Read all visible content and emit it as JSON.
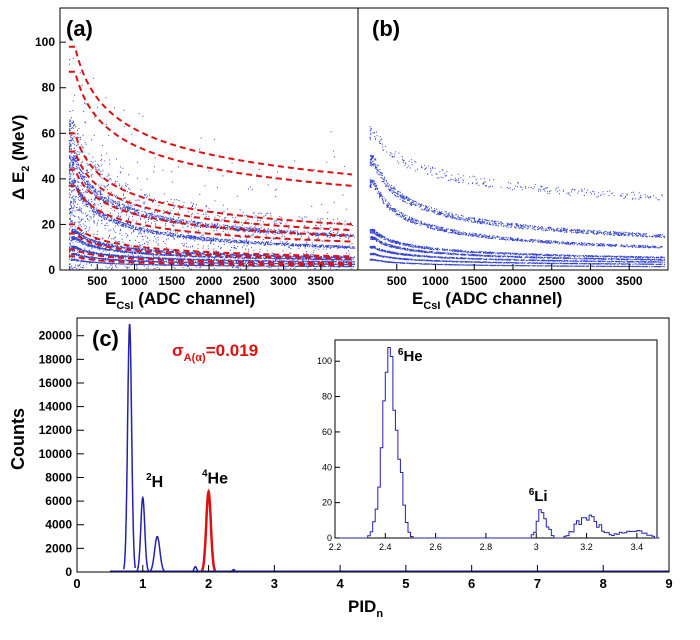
{
  "colors": {
    "blue": "#2222aa",
    "red": "#dd1111",
    "axis": "#000000",
    "scatter": "#3344cc"
  },
  "chart_data": [
    {
      "panel": "(a)",
      "type": "scatter",
      "title": "",
      "xlabel_main": "E",
      "xlabel_sub": "CsI",
      "xlabel_rest": " (ADC channel)",
      "ylabel_main": "Δ E",
      "ylabel_sub": "2",
      "ylabel_rest": " (MeV)",
      "xlim": [
        0,
        4000
      ],
      "ylim": [
        0,
        115
      ],
      "x_ticks": [
        500,
        1000,
        1500,
        2000,
        2500,
        3000,
        3500
      ],
      "y_ticks": [
        0,
        20,
        40,
        60,
        80,
        100
      ],
      "bands_y_at_200_and_3900": [
        [
          48,
          15
        ],
        [
          38,
          10
        ],
        [
          17,
          5.5
        ],
        [
          14,
          4.5
        ],
        [
          10,
          3.5
        ],
        [
          7,
          2.5
        ],
        [
          4.5,
          1.5
        ]
      ],
      "cut_lines_y_at_200_and_3900": [
        [
          98,
          42
        ],
        [
          87,
          37
        ],
        [
          60,
          20
        ],
        [
          52,
          17.5
        ],
        [
          44,
          15
        ],
        [
          37,
          12.5
        ],
        [
          20,
          6
        ],
        [
          16,
          5
        ],
        [
          9,
          3
        ],
        [
          6,
          2
        ]
      ]
    },
    {
      "panel": "(b)",
      "type": "scatter",
      "xlabel_main": "E",
      "xlabel_sub": "CsI",
      "xlabel_rest": " (ADC channel)",
      "xlim": [
        0,
        4000
      ],
      "ylim": [
        0,
        115
      ],
      "x_ticks": [
        500,
        1000,
        1500,
        2000,
        2500,
        3000,
        3500
      ],
      "bands_y_at_200_and_3900": [
        [
          48,
          15
        ],
        [
          38,
          10
        ],
        [
          17,
          5.5
        ],
        [
          14,
          4.5
        ],
        [
          10,
          3.5
        ],
        [
          7,
          2.5
        ],
        [
          4.5,
          1.5
        ],
        [
          60,
          32
        ]
      ]
    },
    {
      "panel": "(c)",
      "type": "line",
      "xlabel_main": "PID",
      "xlabel_sub": "n",
      "ylabel": "Counts",
      "xlim": [
        0,
        9
      ],
      "ylim": [
        0,
        21500
      ],
      "x_ticks": [
        0,
        1,
        2,
        3,
        4,
        5,
        6,
        7,
        8,
        9
      ],
      "y_ticks": [
        0,
        2000,
        4000,
        6000,
        8000,
        10000,
        12000,
        14000,
        16000,
        18000,
        20000
      ],
      "sigma_main": "σ",
      "sigma_sub": "A(α)",
      "sigma_rest": "=0.019",
      "peaks": [
        {
          "x": 0.8,
          "height": 21000,
          "width": 0.03,
          "color": "blue"
        },
        {
          "x": 1.0,
          "height": 6300,
          "width": 0.03,
          "color": "blue"
        },
        {
          "x": 1.22,
          "height": 3000,
          "width": 0.04,
          "color": "blue"
        },
        {
          "x": 1.8,
          "height": 450,
          "width": 0.02,
          "color": "blue"
        },
        {
          "x": 2.0,
          "height": 6800,
          "width": 0.035,
          "color": "red"
        },
        {
          "x": 2.38,
          "height": 200,
          "width": 0.02,
          "color": "blue"
        }
      ],
      "labels": [
        {
          "sup": "2",
          "text": "H",
          "x": 1.05,
          "y": 6700
        },
        {
          "sup": "4",
          "text": "He",
          "x": 1.9,
          "y": 7000
        }
      ],
      "inset": {
        "xlim": [
          2.2,
          3.48
        ],
        "ylim": [
          0,
          112
        ],
        "x_ticks": [
          2.2,
          2.4,
          2.6,
          2.8,
          3,
          3.2,
          3.4
        ],
        "x_tick_labels": [
          "2.2",
          "2.4",
          "2.6",
          "2.8",
          "3",
          "3.2",
          "3.4"
        ],
        "y_ticks": [
          0,
          20,
          40,
          60,
          80,
          100
        ],
        "labels": [
          {
            "sup": "6",
            "text": "He",
            "x": 2.45,
            "y": 100
          },
          {
            "sup": "6",
            "text": "Li",
            "x": 2.97,
            "y": 21
          }
        ]
      }
    }
  ]
}
